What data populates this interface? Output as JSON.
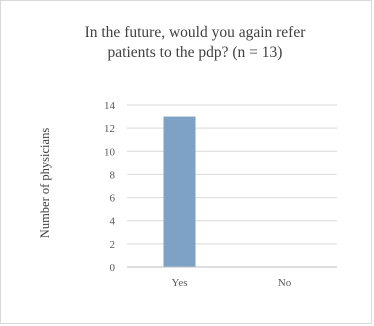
{
  "chart_data": {
    "type": "bar",
    "title_lines": [
      "In the future, would you again refer",
      "patients to the pdp? (n = 13)"
    ],
    "categories": [
      "Yes",
      "No"
    ],
    "values": [
      13,
      0
    ],
    "xlabel": "",
    "ylabel": "Number of physicians",
    "ylim": [
      0,
      14
    ],
    "yticks": [
      0,
      2,
      4,
      6,
      8,
      10,
      12,
      14
    ],
    "grid": true,
    "legend": "none",
    "bar_color": "#7ea1c6",
    "grid_color": "#d9d9d9",
    "axis_color": "#bfbfbf"
  }
}
